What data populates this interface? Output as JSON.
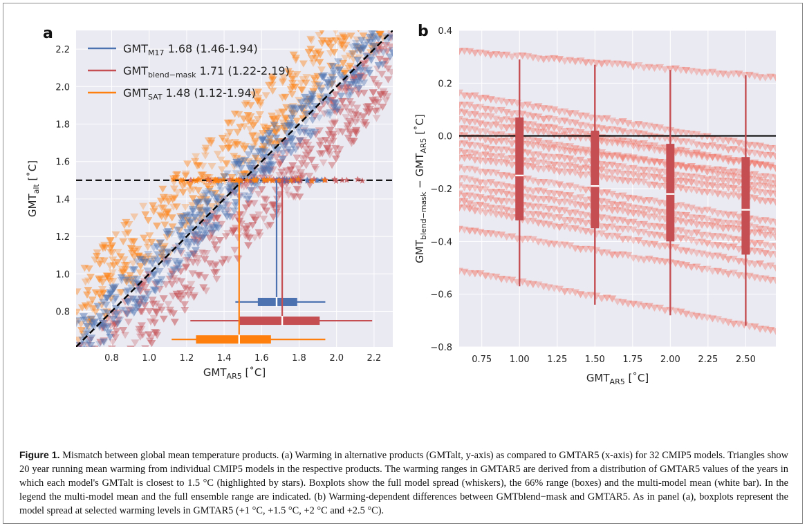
{
  "chart_data": [
    {
      "panel": "a",
      "type": "scatter",
      "xlabel": "GMT",
      "xlabel_sub": "AR5",
      "xlabel_unit": " [˚C]",
      "ylabel": "GMT",
      "ylabel_sub": "alt",
      "ylabel_unit": " [˚C]",
      "xlim": [
        0.61,
        2.3
      ],
      "ylim": [
        0.61,
        2.3
      ],
      "xticks": [
        "0.8",
        "1.0",
        "1.2",
        "1.4",
        "1.6",
        "1.8",
        "2.0",
        "2.2"
      ],
      "yticks": [
        "0.8",
        "1.0",
        "1.2",
        "1.4",
        "1.6",
        "1.8",
        "2.0",
        "2.2"
      ],
      "grid": true,
      "legend_position": "top-left",
      "reference_line": {
        "type": "identity",
        "style": "dashed",
        "color": "#000000"
      },
      "threshold_line": {
        "y": 1.5,
        "style": "dashed",
        "color": "#000000"
      },
      "series": [
        {
          "name": "GMT",
          "name_sub": "M17",
          "legend_value": " 1.68 (1.46-1.94)",
          "color": "#4c72b0",
          "offset_at_1_5": 0.0,
          "spread": 0.13,
          "box": {
            "min": 1.46,
            "q17": 1.58,
            "mean": 1.68,
            "q83": 1.79,
            "max": 1.94
          },
          "box_y": 0.85
        },
        {
          "name": "GMT",
          "name_sub": "blend−mask",
          "legend_value": " 1.71 (1.22-2.19)",
          "color": "#c44e52",
          "offset_at_1_5": 0.2,
          "spread": 0.2,
          "box": {
            "min": 1.22,
            "q17": 1.48,
            "mean": 1.71,
            "q83": 1.91,
            "max": 2.19
          },
          "box_y": 0.75
        },
        {
          "name": "GMT",
          "name_sub": "SAT",
          "legend_value": " 1.48 (1.12-1.94)",
          "color": "#ff7f0e",
          "offset_at_1_5": -0.2,
          "spread": 0.2,
          "box": {
            "min": 1.12,
            "q17": 1.25,
            "mean": 1.48,
            "q83": 1.65,
            "max": 1.94
          },
          "box_y": 0.65
        }
      ]
    },
    {
      "panel": "b",
      "type": "scatter",
      "xlabel": "GMT",
      "xlabel_sub": "AR5",
      "xlabel_unit": " [˚C]",
      "ylabel": "GMT",
      "ylabel_sub1": "blend−mask",
      "ylabel_mid": " − GMT",
      "ylabel_sub2": "AR5",
      "ylabel_unit": " [˚C]",
      "xlim": [
        0.6,
        2.7
      ],
      "ylim": [
        -0.8,
        0.4
      ],
      "xticks": [
        "0.75",
        "1.00",
        "1.25",
        "1.50",
        "1.75",
        "2.00",
        "2.25",
        "2.50"
      ],
      "yticks": [
        "−0.8",
        "−0.6",
        "−0.4",
        "−0.2",
        "0.0",
        "0.2",
        "0.4"
      ],
      "grid": true,
      "zero_line": {
        "y": 0.0,
        "color": "#000000"
      },
      "color": "#c44e52",
      "model_lines": [
        {
          "start": 0.32,
          "end": 0.22
        },
        {
          "start": 0.16,
          "end": -0.05
        },
        {
          "start": 0.12,
          "end": -0.08
        },
        {
          "start": 0.09,
          "end": -0.12
        },
        {
          "start": 0.06,
          "end": -0.12
        },
        {
          "start": 0.03,
          "end": -0.18
        },
        {
          "start": 0.0,
          "end": -0.16
        },
        {
          "start": -0.03,
          "end": -0.2
        },
        {
          "start": -0.06,
          "end": -0.22
        },
        {
          "start": -0.08,
          "end": -0.25
        },
        {
          "start": -0.12,
          "end": -0.33
        },
        {
          "start": -0.16,
          "end": -0.36
        },
        {
          "start": -0.19,
          "end": -0.38
        },
        {
          "start": -0.22,
          "end": -0.42
        },
        {
          "start": -0.25,
          "end": -0.45
        },
        {
          "start": -0.27,
          "end": -0.5
        },
        {
          "start": -0.35,
          "end": -0.55
        },
        {
          "start": -0.51,
          "end": -0.74
        }
      ],
      "boxes": [
        {
          "x": 1.0,
          "min": -0.57,
          "q17": -0.32,
          "median": -0.15,
          "q83": 0.07,
          "max": 0.29
        },
        {
          "x": 1.5,
          "min": -0.64,
          "q17": -0.35,
          "median": -0.19,
          "q83": 0.02,
          "max": 0.27
        },
        {
          "x": 2.0,
          "min": -0.68,
          "q17": -0.4,
          "median": -0.22,
          "q83": -0.03,
          "max": 0.25
        },
        {
          "x": 2.5,
          "min": -0.72,
          "q17": -0.45,
          "median": -0.28,
          "q83": -0.08,
          "max": 0.23
        }
      ]
    }
  ],
  "panel_labels": {
    "a": "a",
    "b": "b"
  },
  "caption": {
    "label": "Figure 1.",
    "text": " Mismatch between global mean temperature products. (a) Warming in alternative products (GMTalt, y-axis) as compared to GMTAR5 (x-axis) for 32 CMIP5 models. Triangles show 20 year running mean warming from individual CMIP5 models in the respective products. The warming ranges in GMTAR5 are derived from a distribution of GMTAR5 values of the years in which each model's GMTalt is closest to 1.5 °C (highlighted by stars). Boxplots show the full model spread (whiskers), the 66% range (boxes) and the multi-model mean (white bar). In the legend the multi-model mean and the full ensemble range are indicated. (b) Warming-dependent differences between GMTblend−mask and GMTAR5. As in panel (a), boxplots represent the model spread at selected warming levels in GMTAR5 (+1 °C, +1.5 °C, +2 °C and +2.5 °C)."
  }
}
